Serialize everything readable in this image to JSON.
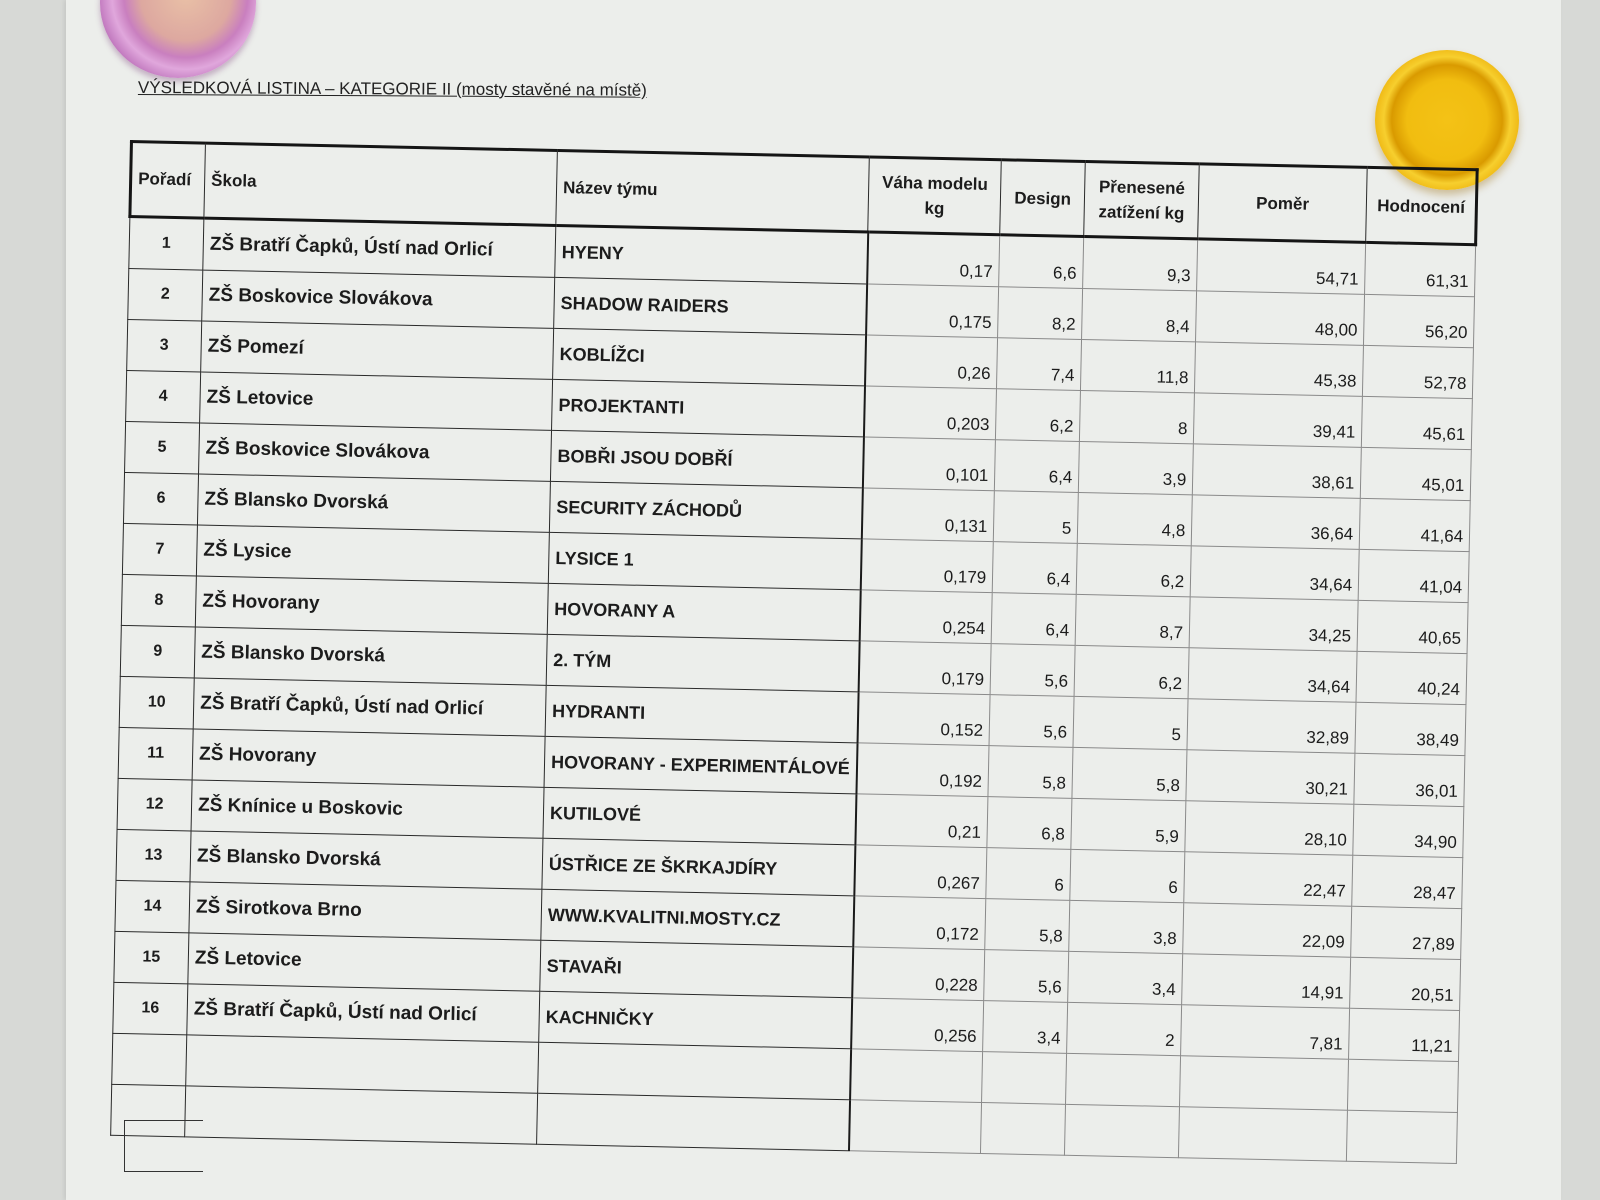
{
  "document": {
    "title": "VÝSLEDKOVÁ LISTINA – KATEGORIE II (mosty stavěné na místě)"
  },
  "table": {
    "headers": {
      "rank": "Pořadí",
      "school": "Škola",
      "team": "Název týmu",
      "weight": "Váha modelu kg",
      "design": "Design",
      "load": "Přenesené zatížení kg",
      "ratio": "Poměr",
      "score": "Hodnocení"
    },
    "rows": [
      {
        "rank": "1",
        "school": "ZŠ Bratří Čapků, Ústí nad Orlicí",
        "team": "HYENY",
        "weight": "0,17",
        "design": "6,6",
        "load": "9,3",
        "ratio": "54,71",
        "score": "61,31"
      },
      {
        "rank": "2",
        "school": "ZŠ Boskovice Slovákova",
        "team": "SHADOW RAIDERS",
        "weight": "0,175",
        "design": "8,2",
        "load": "8,4",
        "ratio": "48,00",
        "score": "56,20"
      },
      {
        "rank": "3",
        "school": "ZŠ Pomezí",
        "team": "KOBLÍŽCI",
        "weight": "0,26",
        "design": "7,4",
        "load": "11,8",
        "ratio": "45,38",
        "score": "52,78"
      },
      {
        "rank": "4",
        "school": "ZŠ Letovice",
        "team": "PROJEKTANTI",
        "weight": "0,203",
        "design": "6,2",
        "load": "8",
        "ratio": "39,41",
        "score": "45,61"
      },
      {
        "rank": "5",
        "school": "ZŠ Boskovice Slovákova",
        "team": "BOBŘI JSOU DOBŘÍ",
        "weight": "0,101",
        "design": "6,4",
        "load": "3,9",
        "ratio": "38,61",
        "score": "45,01"
      },
      {
        "rank": "6",
        "school": "ZŠ Blansko Dvorská",
        "team": "SECURITY ZÁCHODŮ",
        "weight": "0,131",
        "design": "5",
        "load": "4,8",
        "ratio": "36,64",
        "score": "41,64"
      },
      {
        "rank": "7",
        "school": "ZŠ Lysice",
        "team": "LYSICE 1",
        "weight": "0,179",
        "design": "6,4",
        "load": "6,2",
        "ratio": "34,64",
        "score": "41,04"
      },
      {
        "rank": "8",
        "school": "ZŠ Hovorany",
        "team": "HOVORANY A",
        "weight": "0,254",
        "design": "6,4",
        "load": "8,7",
        "ratio": "34,25",
        "score": "40,65"
      },
      {
        "rank": "9",
        "school": "ZŠ Blansko Dvorská",
        "team": "2. TÝM",
        "weight": "0,179",
        "design": "5,6",
        "load": "6,2",
        "ratio": "34,64",
        "score": "40,24"
      },
      {
        "rank": "10",
        "school": "ZŠ Bratří Čapků, Ústí nad Orlicí",
        "team": "HYDRANTI",
        "weight": "0,152",
        "design": "5,6",
        "load": "5",
        "ratio": "32,89",
        "score": "38,49"
      },
      {
        "rank": "11",
        "school": "ZŠ Hovorany",
        "team": "HOVORANY - EXPERIMENTÁLOVÉ",
        "weight": "0,192",
        "design": "5,8",
        "load": "5,8",
        "ratio": "30,21",
        "score": "36,01"
      },
      {
        "rank": "12",
        "school": "ZŠ Knínice u Boskovic",
        "team": "KUTILOVÉ",
        "weight": "0,21",
        "design": "6,8",
        "load": "5,9",
        "ratio": "28,10",
        "score": "34,90"
      },
      {
        "rank": "13",
        "school": "ZŠ Blansko Dvorská",
        "team": "ÚSTŘICE ZE ŠKRKAJDÍRY",
        "weight": "0,267",
        "design": "6",
        "load": "6",
        "ratio": "22,47",
        "score": "28,47"
      },
      {
        "rank": "14",
        "school": "ZŠ Sirotkova Brno",
        "team": "WWW.KVALITNI.MOSTY.CZ",
        "weight": "0,172",
        "design": "5,8",
        "load": "3,8",
        "ratio": "22,09",
        "score": "27,89"
      },
      {
        "rank": "15",
        "school": "ZŠ Letovice",
        "team": "STAVAŘI",
        "weight": "0,228",
        "design": "5,6",
        "load": "3,4",
        "ratio": "14,91",
        "score": "20,51"
      },
      {
        "rank": "16",
        "school": "ZŠ Bratří Čapků, Ústí nad Orlicí",
        "team": "KACHNIČKY",
        "weight": "0,256",
        "design": "3,4",
        "load": "2",
        "ratio": "7,81",
        "score": "11,21"
      }
    ],
    "empty_rows": 2
  }
}
